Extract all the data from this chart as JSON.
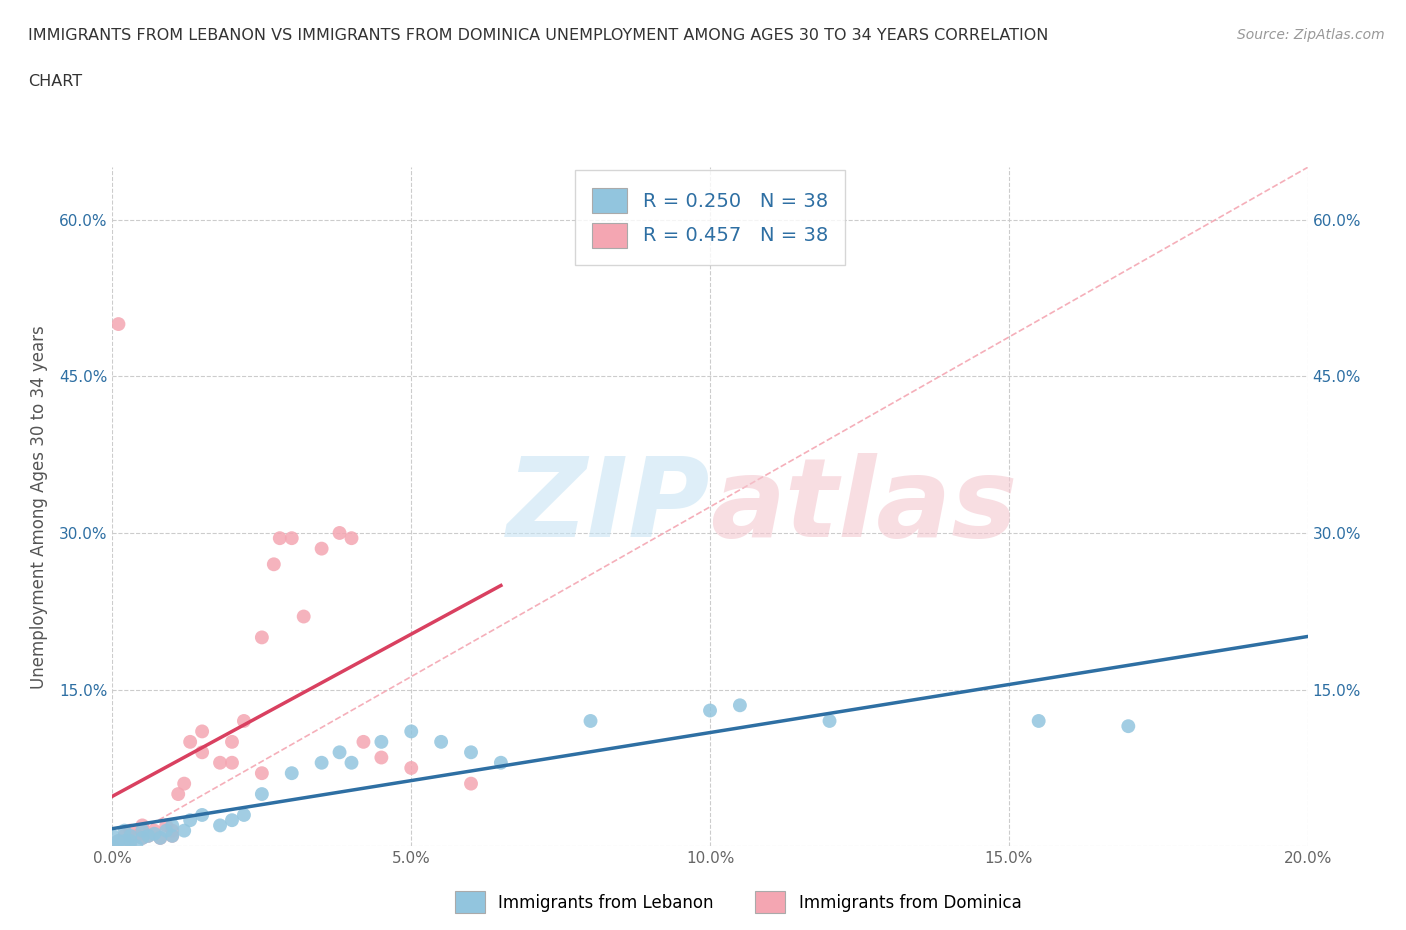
{
  "title_line1": "IMMIGRANTS FROM LEBANON VS IMMIGRANTS FROM DOMINICA UNEMPLOYMENT AMONG AGES 30 TO 34 YEARS CORRELATION",
  "title_line2": "CHART",
  "source": "Source: ZipAtlas.com",
  "ylabel": "Unemployment Among Ages 30 to 34 years",
  "legend_label_1": "Immigrants from Lebanon",
  "legend_label_2": "Immigrants from Dominica",
  "R1": 0.25,
  "N1": 38,
  "R2": 0.457,
  "N2": 38,
  "color1": "#92C5DE",
  "color2": "#F4A6B2",
  "line_color1": "#2E6FA3",
  "line_color2": "#D94060",
  "diag_color": "#F4A6B2",
  "xlim": [
    0.0,
    0.2
  ],
  "ylim": [
    0.0,
    0.65
  ],
  "xticks": [
    0.0,
    0.05,
    0.1,
    0.15,
    0.2
  ],
  "yticks": [
    0.0,
    0.15,
    0.3,
    0.45,
    0.6
  ],
  "xticklabels": [
    "0.0%",
    "5.0%",
    "10.0%",
    "15.0%",
    "20.0%"
  ],
  "yticklabels": [
    "",
    "15.0%",
    "30.0%",
    "45.0%",
    "60.0%"
  ],
  "lebanon_x": [
    0.0,
    0.0,
    0.001,
    0.002,
    0.003,
    0.003,
    0.004,
    0.005,
    0.005,
    0.006,
    0.007,
    0.008,
    0.009,
    0.01,
    0.01,
    0.012,
    0.013,
    0.015,
    0.018,
    0.02,
    0.022,
    0.025,
    0.03,
    0.035,
    0.038,
    0.04,
    0.045,
    0.05,
    0.055,
    0.06,
    0.065,
    0.08,
    0.1,
    0.105,
    0.12,
    0.155,
    0.17,
    0.002
  ],
  "lebanon_y": [
    0.0,
    0.01,
    0.005,
    0.015,
    0.005,
    0.01,
    0.0,
    0.008,
    0.015,
    0.01,
    0.012,
    0.008,
    0.015,
    0.01,
    0.02,
    0.015,
    0.025,
    0.03,
    0.02,
    0.025,
    0.03,
    0.05,
    0.07,
    0.08,
    0.09,
    0.08,
    0.1,
    0.11,
    0.1,
    0.09,
    0.08,
    0.12,
    0.13,
    0.135,
    0.12,
    0.12,
    0.115,
    0.005
  ],
  "dominica_x": [
    0.0,
    0.001,
    0.002,
    0.003,
    0.003,
    0.004,
    0.005,
    0.005,
    0.006,
    0.007,
    0.008,
    0.009,
    0.01,
    0.01,
    0.011,
    0.012,
    0.013,
    0.015,
    0.015,
    0.018,
    0.02,
    0.02,
    0.022,
    0.025,
    0.025,
    0.027,
    0.028,
    0.03,
    0.032,
    0.035,
    0.038,
    0.04,
    0.042,
    0.045,
    0.05,
    0.06,
    0.001,
    0.003
  ],
  "dominica_y": [
    0.0,
    0.005,
    0.01,
    0.005,
    0.015,
    0.01,
    0.008,
    0.02,
    0.01,
    0.015,
    0.008,
    0.02,
    0.01,
    0.015,
    0.05,
    0.06,
    0.1,
    0.09,
    0.11,
    0.08,
    0.1,
    0.08,
    0.12,
    0.07,
    0.2,
    0.27,
    0.295,
    0.295,
    0.22,
    0.285,
    0.3,
    0.295,
    0.1,
    0.085,
    0.075,
    0.06,
    0.5,
    0.003
  ]
}
